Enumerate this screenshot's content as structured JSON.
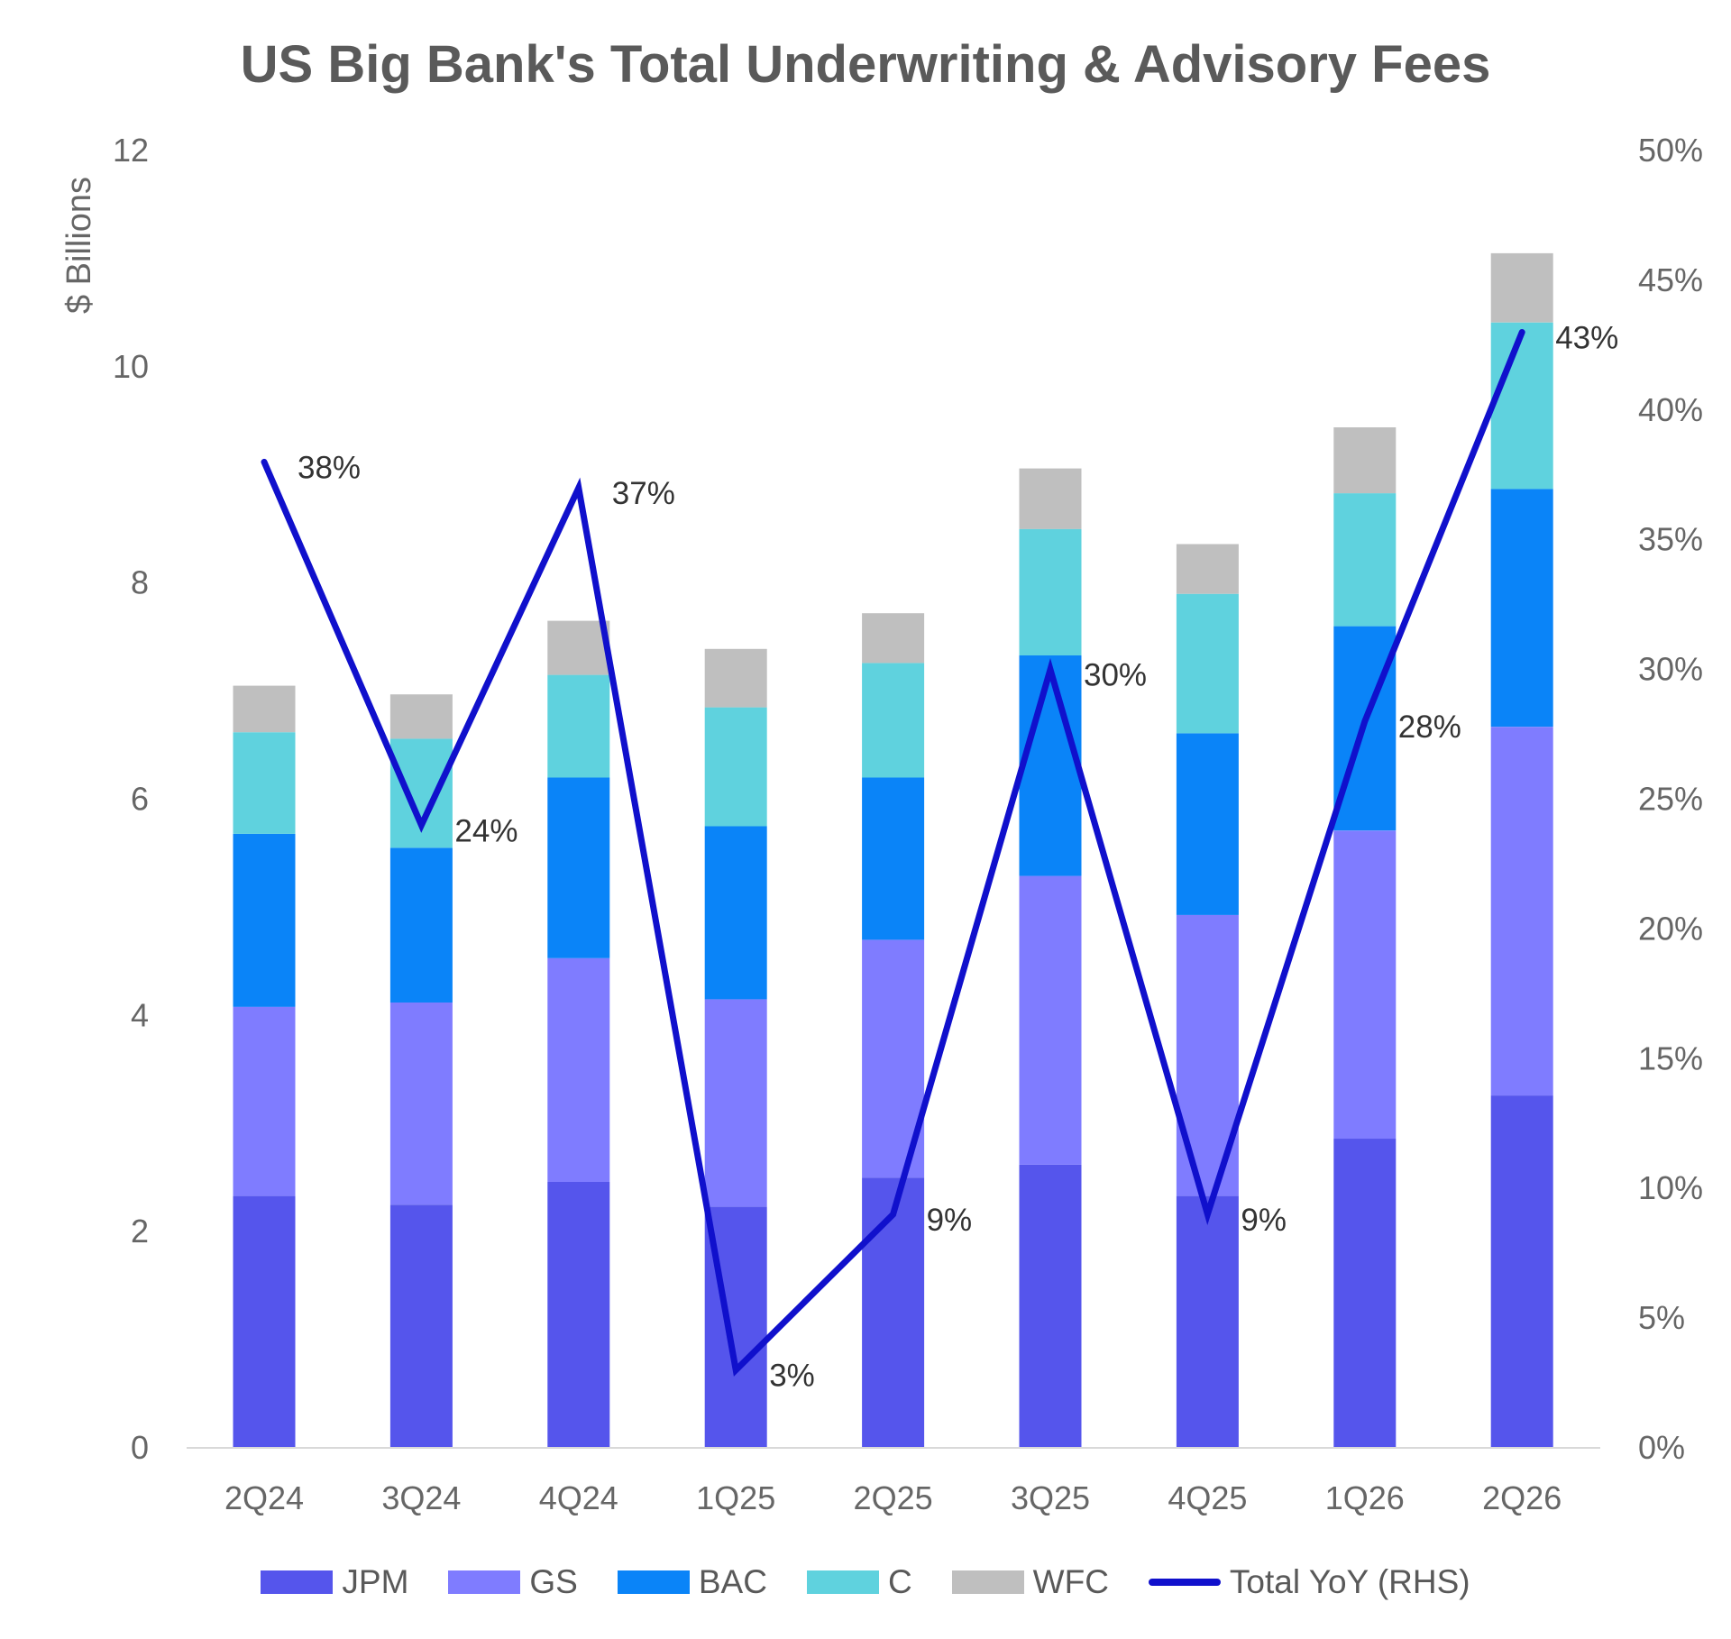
{
  "chart_data": {
    "type": "bar",
    "title": "US Big Bank's Total Underwriting & Advisory Fees",
    "ylabel": "$ Billions",
    "ylim": [
      0,
      12
    ],
    "y_ticks": [
      "0",
      "2",
      "4",
      "6",
      "8",
      "10",
      "12"
    ],
    "y2lim": [
      0,
      0.5
    ],
    "y2_ticks": [
      "0%",
      "5%",
      "10%",
      "15%",
      "20%",
      "25%",
      "30%",
      "35%",
      "40%",
      "45%",
      "50%"
    ],
    "categories": [
      "2Q24",
      "3Q24",
      "4Q24",
      "1Q25",
      "2Q25",
      "3Q25",
      "4Q25",
      "1Q26",
      "2Q26"
    ],
    "stacked": true,
    "series": [
      {
        "name": "JPM",
        "color": "#5555ec",
        "values": [
          2.33,
          2.25,
          2.46,
          2.23,
          2.5,
          2.62,
          2.33,
          2.86,
          3.26
        ]
      },
      {
        "name": "GS",
        "color": "#7f7cff",
        "values": [
          1.75,
          1.87,
          2.07,
          1.92,
          2.2,
          2.67,
          2.6,
          2.85,
          3.41
        ]
      },
      {
        "name": "BAC",
        "color": "#0a84f8",
        "values": [
          1.6,
          1.43,
          1.67,
          1.6,
          1.5,
          2.04,
          1.68,
          1.89,
          2.2
        ]
      },
      {
        "name": "C",
        "color": "#5fd2de",
        "values": [
          0.94,
          1.01,
          0.95,
          1.1,
          1.06,
          1.17,
          1.29,
          1.23,
          1.54
        ]
      },
      {
        "name": "WFC",
        "color": "#bfbfbf",
        "values": [
          0.43,
          0.41,
          0.5,
          0.54,
          0.46,
          0.56,
          0.46,
          0.61,
          0.64
        ]
      }
    ],
    "line": {
      "name": "Total YoY (RHS)",
      "color": "#1010cc",
      "axis": "right",
      "values": [
        0.38,
        0.24,
        0.37,
        0.03,
        0.09,
        0.3,
        0.09,
        0.28,
        0.43
      ],
      "labels": [
        "38%",
        "24%",
        "37%",
        "3%",
        "9%",
        "30%",
        "9%",
        "28%",
        "43%"
      ]
    },
    "legend": "bottom",
    "grid": false
  }
}
